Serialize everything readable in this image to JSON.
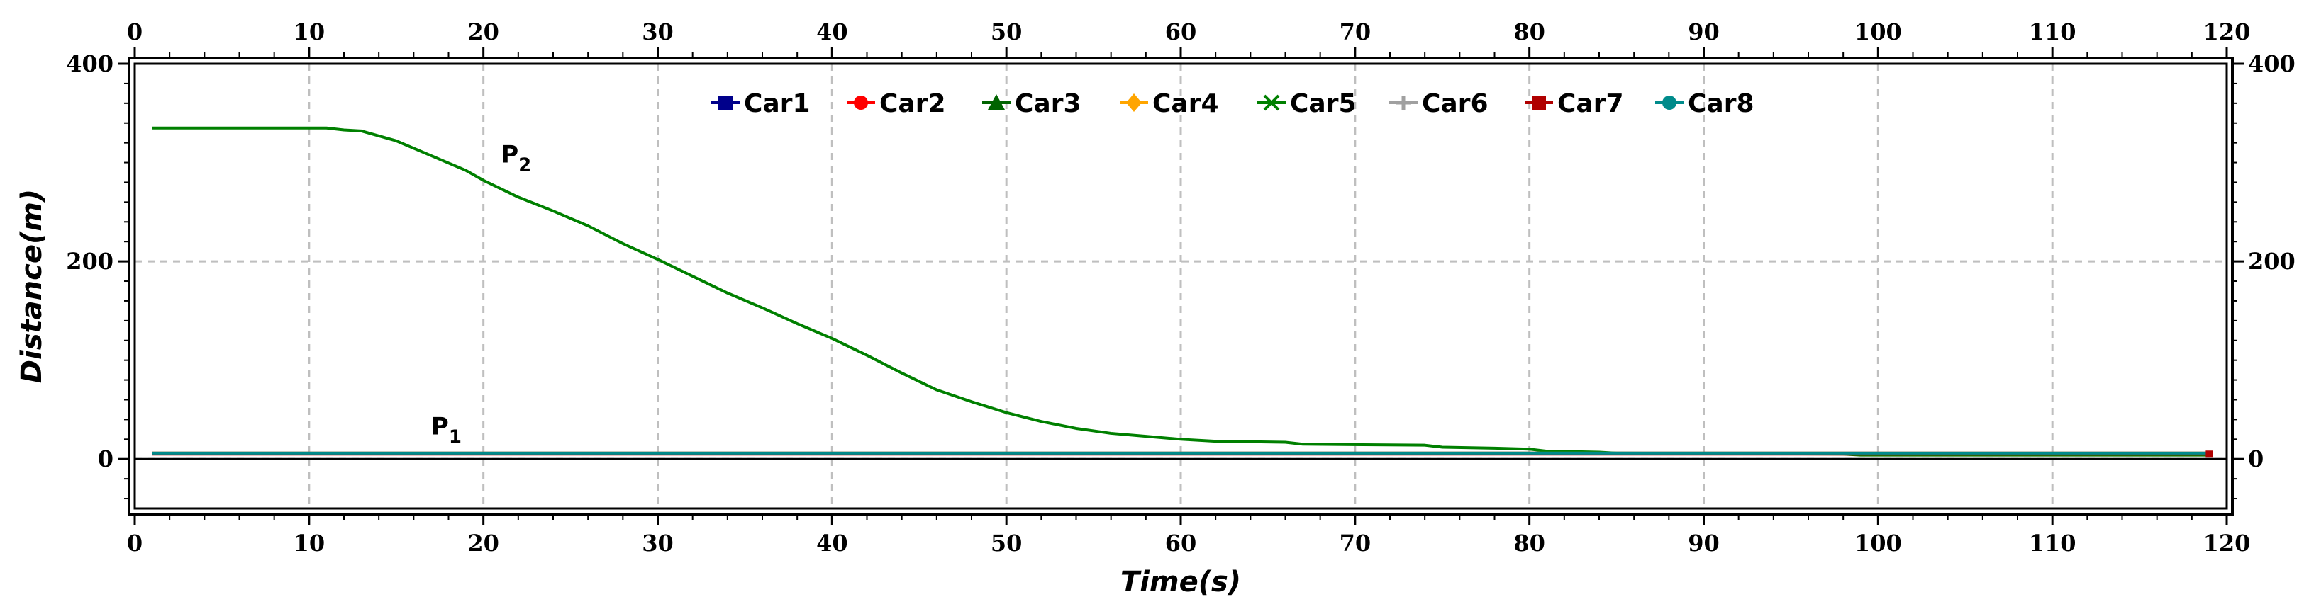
{
  "chart_data": {
    "type": "line",
    "xlabel": "Time(s)",
    "ylabel": "Distance(m)",
    "xlim": [
      0,
      120
    ],
    "ylim": [
      -50,
      400
    ],
    "x_ticks": [
      "0",
      "10",
      "20",
      "30",
      "40",
      "50",
      "60",
      "70",
      "80",
      "90",
      "100",
      "110",
      "120"
    ],
    "y_ticks": [
      "0",
      "200",
      "400"
    ],
    "grid": true,
    "legend_position": "top-center",
    "series": [
      {
        "name": "Car1",
        "color": "#00008b",
        "marker": "square",
        "points": [
          [
            1,
            6
          ],
          [
            119,
            6
          ]
        ]
      },
      {
        "name": "Car2",
        "color": "#ff0000",
        "marker": "circle",
        "points": [
          [
            1,
            6
          ],
          [
            119,
            6
          ]
        ]
      },
      {
        "name": "Car3",
        "color": "#006400",
        "marker": "triangle",
        "points": [
          [
            1,
            6
          ],
          [
            119,
            6
          ]
        ]
      },
      {
        "name": "Car4",
        "color": "#ffa500",
        "marker": "diamond",
        "points": [
          [
            1,
            6
          ],
          [
            119,
            6
          ]
        ]
      },
      {
        "name": "Car5",
        "color": "#008000",
        "marker": "cross",
        "points": [
          [
            1,
            335
          ],
          [
            10,
            335
          ],
          [
            11,
            335
          ],
          [
            12,
            333
          ],
          [
            13,
            332
          ],
          [
            15,
            322
          ],
          [
            17,
            307
          ],
          [
            19,
            292
          ],
          [
            20,
            282
          ],
          [
            22,
            265
          ],
          [
            24,
            251
          ],
          [
            26,
            236
          ],
          [
            28,
            218
          ],
          [
            30,
            202
          ],
          [
            32,
            185
          ],
          [
            34,
            168
          ],
          [
            36,
            153
          ],
          [
            38,
            137
          ],
          [
            40,
            122
          ],
          [
            42,
            105
          ],
          [
            44,
            87
          ],
          [
            46,
            70
          ],
          [
            48,
            58
          ],
          [
            50,
            47
          ],
          [
            52,
            38
          ],
          [
            54,
            31
          ],
          [
            56,
            26
          ],
          [
            58,
            23
          ],
          [
            60,
            20
          ],
          [
            62,
            18
          ],
          [
            66,
            17
          ],
          [
            67,
            15
          ],
          [
            74,
            14
          ],
          [
            75,
            12
          ],
          [
            78,
            11
          ],
          [
            80,
            10
          ],
          [
            81,
            8
          ],
          [
            84,
            7
          ],
          [
            85,
            6
          ],
          [
            98,
            5
          ],
          [
            99,
            4
          ],
          [
            100,
            4
          ],
          [
            119,
            4
          ]
        ]
      },
      {
        "name": "Car6",
        "color": "#a0a0a0",
        "marker": "plus",
        "points": [
          [
            1,
            6
          ],
          [
            119,
            6
          ]
        ]
      },
      {
        "name": "Car7",
        "color": "#b00000",
        "marker": "square",
        "points": [
          [
            1,
            5
          ],
          [
            119,
            5
          ]
        ]
      },
      {
        "name": "Car8",
        "color": "#008b8b",
        "marker": "circle",
        "points": [
          [
            1,
            6
          ],
          [
            119,
            6
          ]
        ]
      }
    ],
    "annotations": [
      {
        "text": "P",
        "subscript": "1",
        "x": 17,
        "y": 25
      },
      {
        "text": "P",
        "subscript": "2",
        "x": 21,
        "y": 300
      }
    ]
  }
}
